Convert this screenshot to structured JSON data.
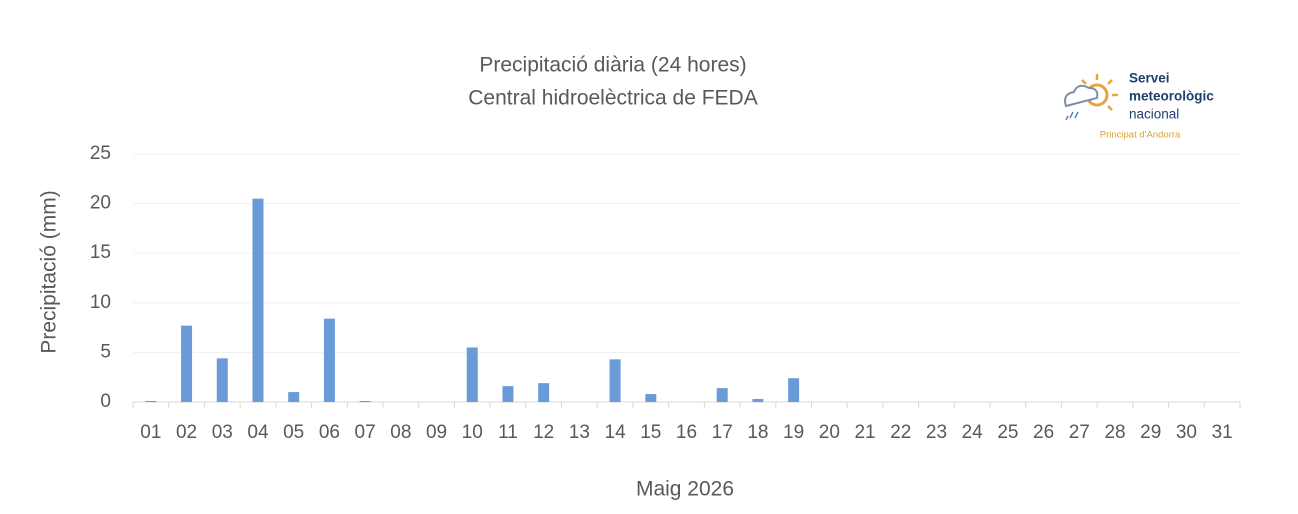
{
  "chart_data": {
    "type": "bar",
    "title": "Precipitació diària (24 hores)",
    "subtitle": "Central hidroelèctrica de FEDA",
    "x_label": "Maig 2026",
    "y_label": "Precipitació (mm)",
    "categories": [
      "01",
      "02",
      "03",
      "04",
      "05",
      "06",
      "07",
      "08",
      "09",
      "10",
      "11",
      "12",
      "13",
      "14",
      "15",
      "16",
      "17",
      "18",
      "19",
      "20",
      "21",
      "22",
      "23",
      "24",
      "25",
      "26",
      "27",
      "28",
      "29",
      "30",
      "31"
    ],
    "values": [
      0.1,
      7.7,
      4.4,
      20.5,
      1.0,
      8.4,
      0.1,
      0,
      0,
      5.5,
      1.6,
      1.9,
      0,
      4.3,
      0.8,
      0,
      1.4,
      0.3,
      2.4,
      0,
      0,
      0,
      0,
      0,
      0,
      0,
      0,
      0,
      0,
      0,
      0
    ],
    "color": "#6a9bd8",
    "ylim": [
      0,
      25
    ],
    "yticks": [
      0,
      5,
      10,
      15,
      20,
      25
    ],
    "grid": true
  },
  "logo": {
    "line1": "Servei",
    "line2": "meteorològic",
    "line3": "nacional",
    "subtitle": "Principat d'Andorra"
  }
}
